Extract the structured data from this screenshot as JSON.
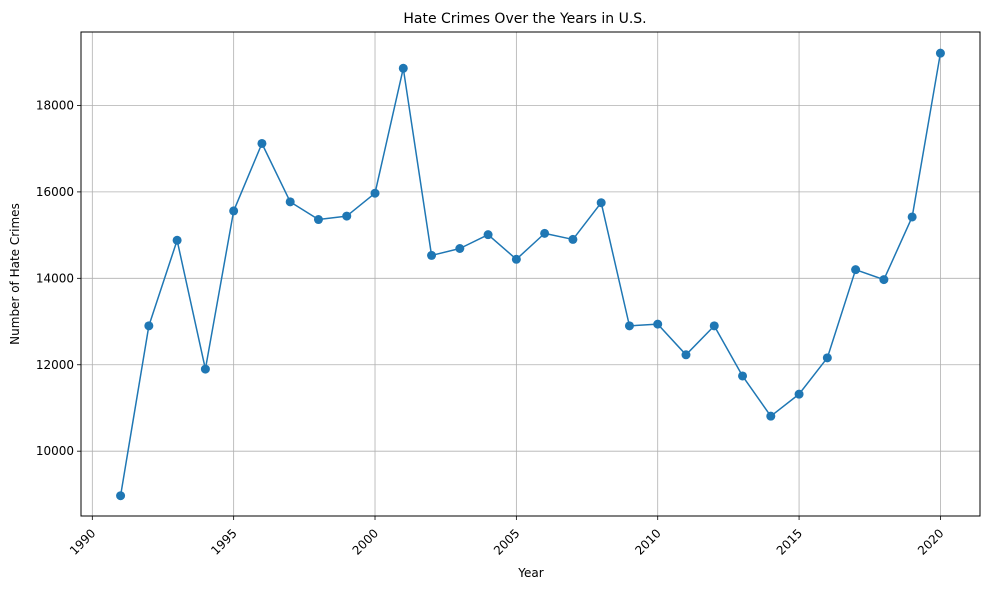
{
  "chart_data": {
    "type": "line",
    "title": "Hate Crimes Over the Years in U.S.",
    "xlabel": "Year",
    "ylabel": "Number of Hate Crimes",
    "xlim": [
      1989.6,
      2021.4
    ],
    "ylim": [
      8500,
      19700
    ],
    "xticks": [
      1990,
      1995,
      2000,
      2005,
      2010,
      2015,
      2020
    ],
    "yticks": [
      10000,
      12000,
      14000,
      16000,
      18000
    ],
    "grid": true,
    "marker": "circle",
    "series": [
      {
        "color": "#1f77b4",
        "x": [
          1991,
          1992,
          1993,
          1994,
          1995,
          1996,
          1997,
          1998,
          1999,
          2000,
          2001,
          2002,
          2003,
          2004,
          2005,
          2006,
          2007,
          2008,
          2009,
          2010,
          2011,
          2012,
          2013,
          2014,
          2015,
          2016,
          2017,
          2018,
          2019,
          2020
        ],
        "values": [
          8970,
          12900,
          14880,
          11900,
          15560,
          17120,
          15770,
          15360,
          15440,
          15970,
          18860,
          14530,
          14690,
          15010,
          14440,
          15040,
          14900,
          15750,
          12900,
          12940,
          12230,
          12900,
          11740,
          10810,
          11320,
          12160,
          14200,
          13970,
          15420,
          19210
        ]
      }
    ]
  }
}
